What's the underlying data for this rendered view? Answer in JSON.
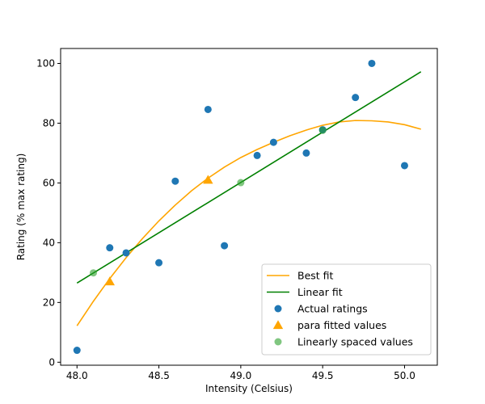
{
  "chart_data": {
    "type": "scatter",
    "xlabel": "Intensity (Celsius)",
    "ylabel": "Rating (% max rating)",
    "xlim": [
      47.9,
      50.2
    ],
    "ylim": [
      -1,
      105
    ],
    "x_ticks": [
      48.0,
      48.5,
      49.0,
      49.5,
      50.0
    ],
    "x_tick_labels": [
      "48.0",
      "48.5",
      "49.0",
      "49.5",
      "50.0"
    ],
    "y_ticks": [
      0,
      20,
      40,
      60,
      80,
      100
    ],
    "y_tick_labels": [
      "0",
      "20",
      "40",
      "60",
      "80",
      "100"
    ],
    "grid": false,
    "legend_position": "lower-right",
    "colors": {
      "best_fit": "#ffa500",
      "linear_fit": "#008000",
      "actual": "#1f77b4",
      "para": "#ffa500",
      "linspace": "#2ca02c"
    },
    "series": [
      {
        "name": "Best fit",
        "kind": "line",
        "x": [
          48.0,
          48.1,
          48.2,
          48.3,
          48.4,
          48.5,
          48.6,
          48.7,
          48.8,
          48.9,
          49.0,
          49.1,
          49.2,
          49.3,
          49.4,
          49.5,
          49.6,
          49.7,
          49.8,
          49.9,
          50.0,
          50.1
        ],
        "y": [
          12.2,
          20.4,
          28.0,
          35.0,
          41.4,
          47.3,
          52.6,
          57.4,
          61.6,
          65.3,
          68.5,
          71.2,
          73.6,
          75.8,
          77.7,
          79.3,
          80.4,
          80.9,
          80.8,
          80.4,
          79.5,
          78.0
        ]
      },
      {
        "name": "Linear fit",
        "kind": "line",
        "x": [
          48.0,
          50.1
        ],
        "y": [
          26.5,
          97.2
        ]
      },
      {
        "name": "Actual ratings",
        "kind": "scatter",
        "marker": "circle",
        "x": [
          48.0,
          48.2,
          48.3,
          48.5,
          48.6,
          48.8,
          48.9,
          49.1,
          49.2,
          49.4,
          49.5,
          49.7,
          49.8,
          50.0
        ],
        "y": [
          4.0,
          38.3,
          36.6,
          33.3,
          60.6,
          84.6,
          39.0,
          69.2,
          73.6,
          70.0,
          77.8,
          88.6,
          100.0,
          65.8
        ]
      },
      {
        "name": "para fitted values",
        "kind": "scatter",
        "marker": "triangle",
        "x": [
          48.2,
          48.8
        ],
        "y": [
          27.0,
          61.0
        ]
      },
      {
        "name": "Linearly spaced values",
        "kind": "scatter",
        "marker": "circle-translucent",
        "x": [
          48.1,
          49.0,
          49.5
        ],
        "y": [
          29.9,
          60.1,
          77.6
        ]
      }
    ]
  }
}
